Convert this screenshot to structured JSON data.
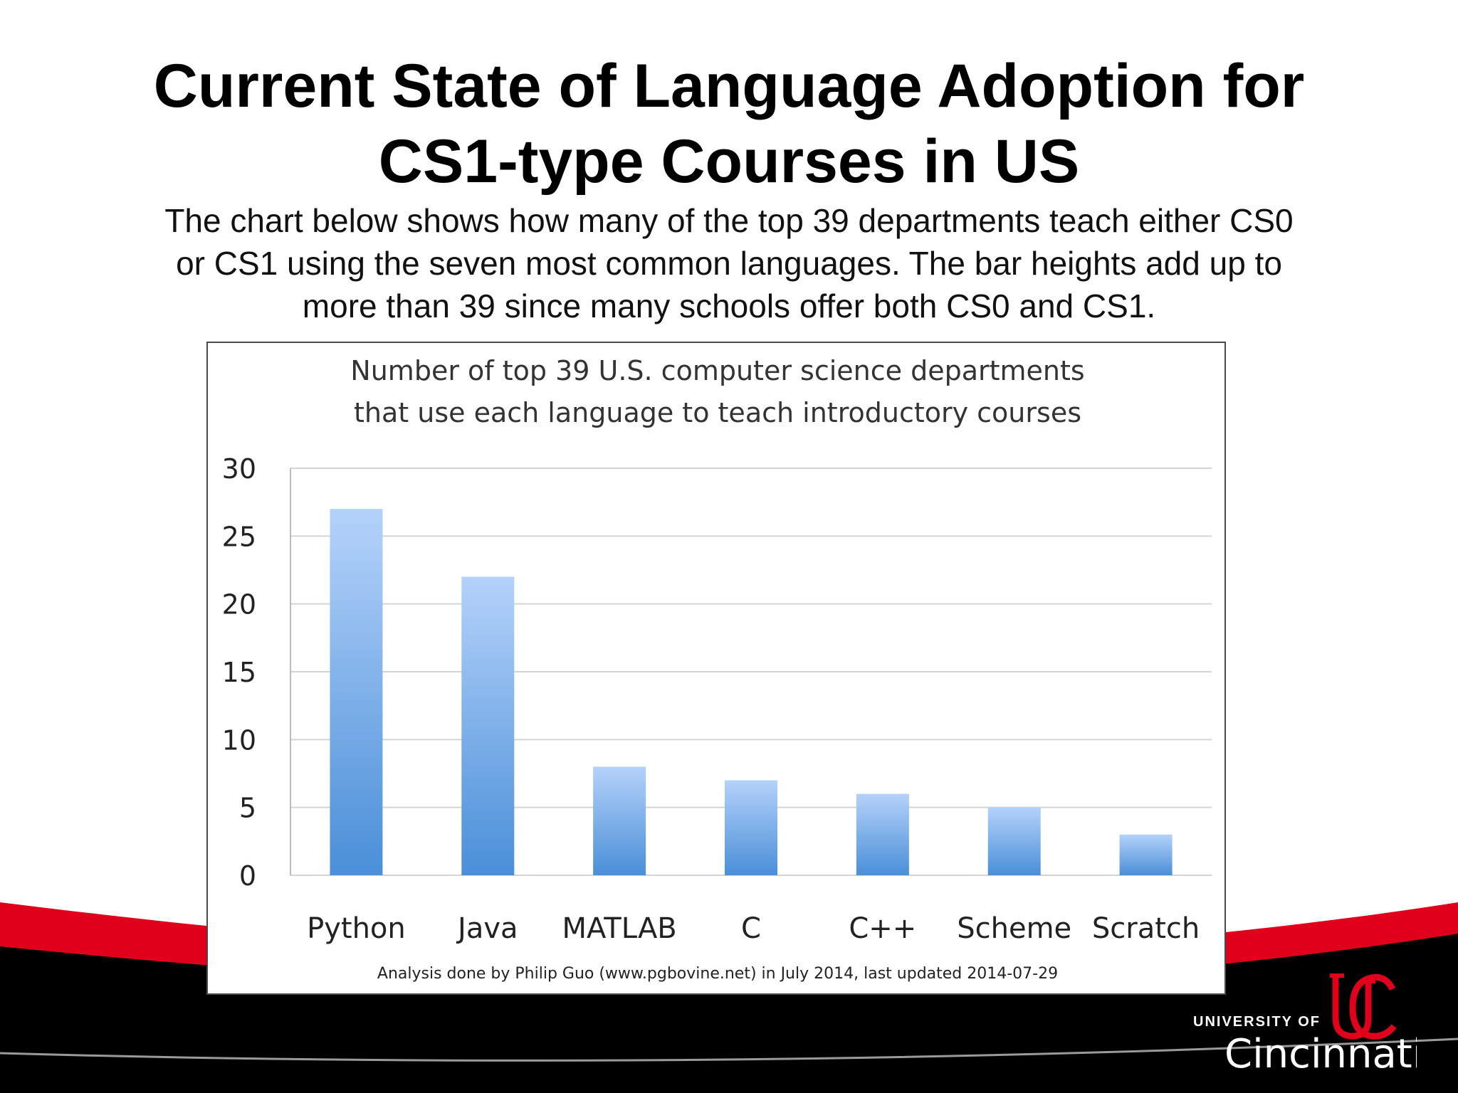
{
  "slide": {
    "title_line1": "Current State of Language Adoption for",
    "title_line2": "CS1-type Courses in US",
    "description_line1": "The chart below shows how many of the top 39 departments teach either CS0",
    "description_line2": "or CS1 using the seven most common languages. The bar heights add up to",
    "description_line3": "more than 39 since many schools offer both CS0 and CS1."
  },
  "logo": {
    "small_text": "UNIVERSITY OF",
    "big_text": "Cincinnati",
    "accent_color": "#e0001b"
  },
  "theme": {
    "red": "#e0001b",
    "black": "#000000",
    "bar_top": "#b4d2fa",
    "bar_bottom": "#4a8fd8",
    "grid": "#d4d4d4"
  },
  "chart_data": {
    "type": "bar",
    "title_line1": "Number of top 39 U.S. computer science departments",
    "title_line2": "that use each language to teach introductory courses",
    "categories": [
      "Python",
      "Java",
      "MATLAB",
      "C",
      "C++",
      "Scheme",
      "Scratch"
    ],
    "values": [
      27,
      22,
      8,
      7,
      6,
      5,
      3
    ],
    "ylim": [
      0,
      30
    ],
    "yticks": [
      "0",
      "5",
      "10",
      "15",
      "20",
      "25",
      "30"
    ],
    "grid": true,
    "legend": "none",
    "credit": "Analysis done by Philip Guo (www.pgbovine.net) in July 2014, last updated 2014-07-29"
  }
}
